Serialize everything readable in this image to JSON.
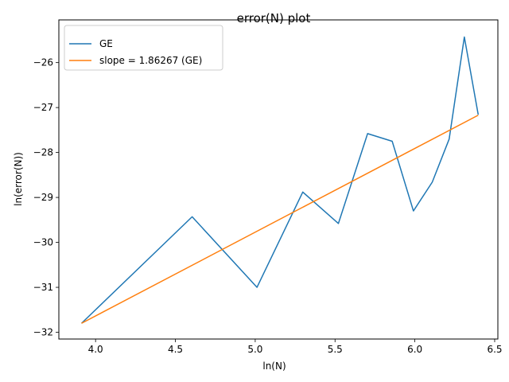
{
  "chart_data": {
    "type": "line",
    "title": "error(N) plot",
    "xlabel": "ln(N)",
    "ylabel": "ln(error(N))",
    "xlim": [
      3.77,
      6.52
    ],
    "ylim": [
      -32.15,
      -25.05
    ],
    "xticks": [
      4.0,
      4.5,
      5.0,
      5.5,
      6.0,
      6.5
    ],
    "xtick_labels": [
      "4.0",
      "4.5",
      "5.0",
      "5.5",
      "6.0",
      "6.5"
    ],
    "yticks": [
      -32,
      -31,
      -30,
      -29,
      -28,
      -27,
      -26
    ],
    "ytick_labels": [
      "−32",
      "−31",
      "−30",
      "−29",
      "−28",
      "−27",
      "−26"
    ],
    "grid": false,
    "legend_position": "upper-left",
    "series": [
      {
        "name": "GE",
        "color": "#1f77b4",
        "x": [
          3.912,
          4.605,
          5.011,
          5.298,
          5.521,
          5.704,
          5.858,
          5.991,
          6.109,
          6.215,
          6.31,
          6.397
        ],
        "y": [
          -31.8,
          -29.43,
          -31.0,
          -28.88,
          -29.58,
          -27.58,
          -27.75,
          -29.3,
          -28.66,
          -27.7,
          -25.43,
          -27.16
        ]
      },
      {
        "name": "slope = 1.86267 (GE)",
        "color": "#ff7f0e",
        "x": [
          3.912,
          6.397
        ],
        "y": [
          -31.8,
          -27.17
        ]
      }
    ]
  }
}
